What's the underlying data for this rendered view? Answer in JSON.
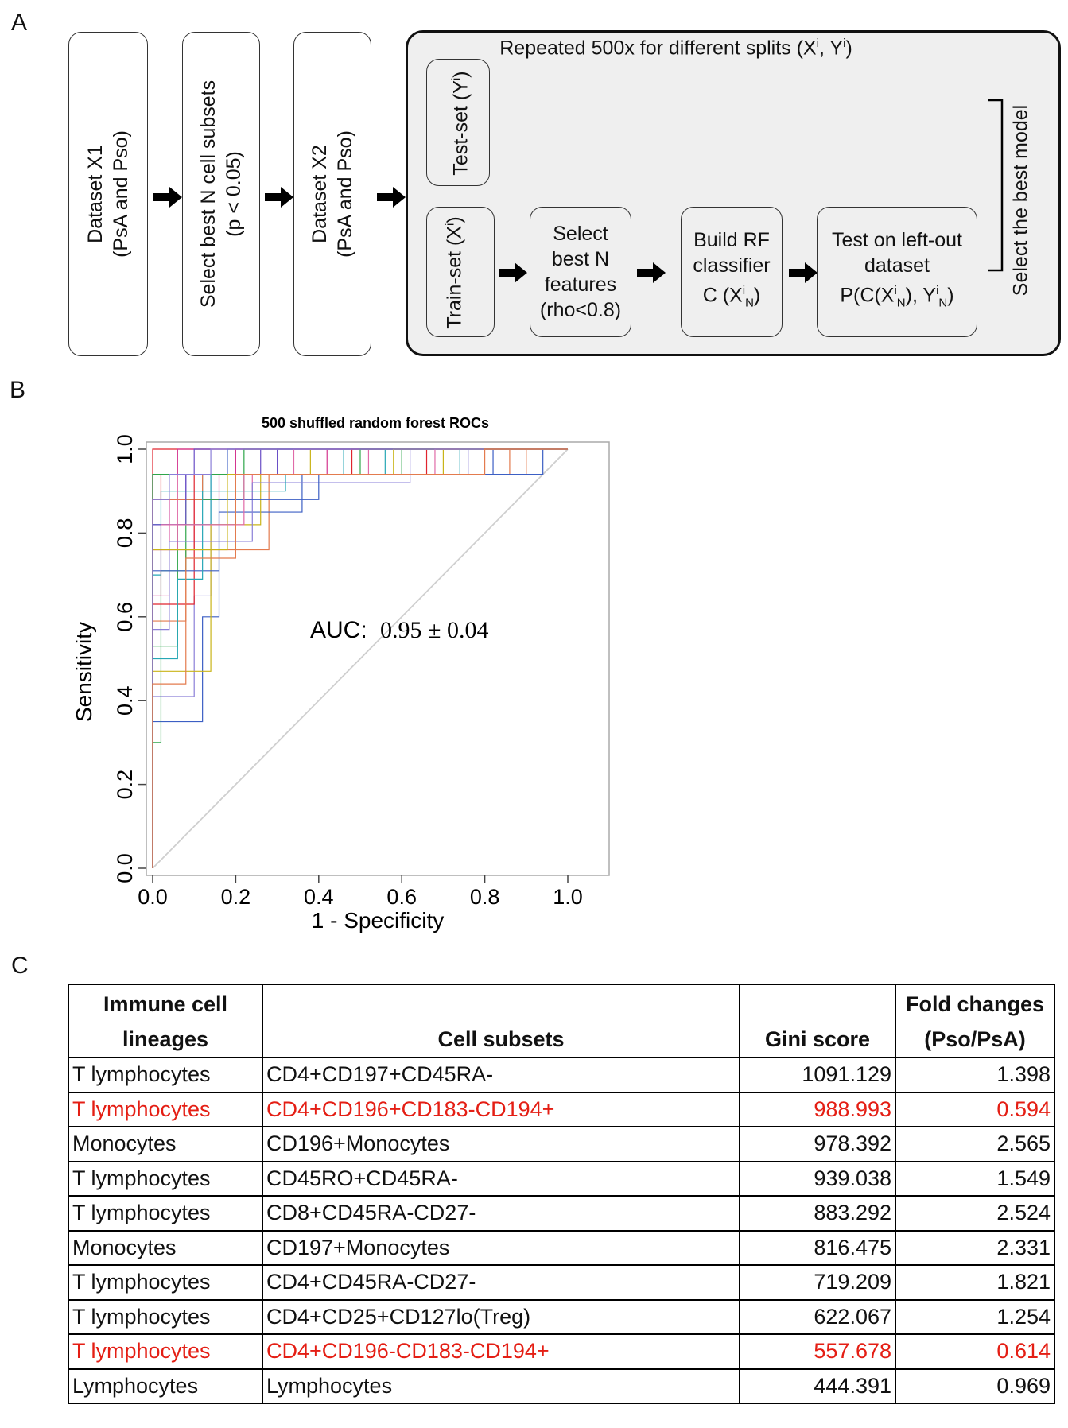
{
  "panel_labels": {
    "a": "A",
    "b": "B",
    "c": "C"
  },
  "panelA": {
    "box1": {
      "line1": "Dataset X1",
      "line2": "(PsA and Pso)"
    },
    "box2": {
      "line1": "Select best N cell subsets",
      "line2": "(p < 0.05)"
    },
    "box3": {
      "line1": "Dataset X2",
      "line2": "(PsA and Pso)"
    },
    "repeat_title_pre": "Repeated 500x for different splits (X",
    "repeat_title_mid": ", Y",
    "repeat_title_post": ")",
    "sup_i": "i",
    "sub_N": "N",
    "test_set_label": "Test-set (Y",
    "train_set_label": "Train-set (X",
    "close_paren": ")",
    "select_features": {
      "l1": "Select",
      "l2": "best N",
      "l3": "features",
      "l4": "(rho<0.8)"
    },
    "build_rf": {
      "l1": "Build  RF",
      "l2": "classifier",
      "l3_pre": "C (X",
      "l3_post": ")"
    },
    "test_leftout": {
      "l1": "Test on left-out",
      "l2": "dataset",
      "l3_pre": "P(C(X",
      "l3_mid": "), Y",
      "l3_post": ")"
    },
    "select_best_model": "Select the best model"
  },
  "chart_data": {
    "type": "line",
    "title": "500 shuffled random forest ROCs",
    "xlabel": "1 - Specificity",
    "ylabel": "Sensitivity",
    "xlim": [
      0.0,
      1.0
    ],
    "ylim": [
      0.0,
      1.0
    ],
    "x_ticks": [
      "0.0",
      "0.2",
      "0.4",
      "0.6",
      "0.8",
      "1.0"
    ],
    "y_ticks": [
      "0.0",
      "0.2",
      "0.4",
      "0.6",
      "0.8",
      "1.0"
    ],
    "annotation": "AUC:",
    "annotation_value": "0.95 ± 0.04",
    "diagonal": [
      [
        0,
        0
      ],
      [
        1,
        1
      ]
    ],
    "series_count": 500,
    "series_colors": [
      "#e0242e",
      "#d4358f",
      "#3c5fc4",
      "#6a4fc6",
      "#26a7b5",
      "#2fa64a",
      "#c9b418",
      "#e06aa8",
      "#8a7fd8",
      "#e37b4e"
    ],
    "series": [
      {
        "name": "roc-1",
        "points": [
          [
            0,
            0
          ],
          [
            0,
            1
          ],
          [
            1,
            1
          ]
        ]
      },
      {
        "name": "roc-2",
        "points": [
          [
            0,
            0
          ],
          [
            0,
            0.94
          ],
          [
            0.06,
            0.94
          ],
          [
            0.06,
            1
          ],
          [
            1,
            1
          ]
        ]
      },
      {
        "name": "roc-3",
        "points": [
          [
            0,
            0
          ],
          [
            0,
            0.82
          ],
          [
            0.04,
            0.82
          ],
          [
            0.04,
            0.94
          ],
          [
            0.18,
            0.94
          ],
          [
            0.18,
            1
          ],
          [
            1,
            1
          ]
        ]
      },
      {
        "name": "roc-4",
        "points": [
          [
            0,
            0
          ],
          [
            0,
            0.88
          ],
          [
            0.08,
            0.88
          ],
          [
            0.08,
            0.94
          ],
          [
            0.3,
            0.94
          ],
          [
            0.3,
            1
          ],
          [
            1,
            1
          ]
        ]
      },
      {
        "name": "roc-5",
        "points": [
          [
            0,
            0
          ],
          [
            0,
            0.7
          ],
          [
            0.02,
            0.7
          ],
          [
            0.02,
            0.9
          ],
          [
            0.12,
            0.9
          ],
          [
            0.12,
            0.94
          ],
          [
            0.46,
            0.94
          ],
          [
            0.46,
            1
          ],
          [
            1,
            1
          ]
        ]
      },
      {
        "name": "roc-6",
        "points": [
          [
            0,
            0
          ],
          [
            0,
            0.53
          ],
          [
            0.06,
            0.53
          ],
          [
            0.06,
            0.82
          ],
          [
            0.2,
            0.82
          ],
          [
            0.2,
            0.94
          ],
          [
            0.6,
            0.94
          ],
          [
            0.6,
            1
          ],
          [
            1,
            1
          ]
        ]
      },
      {
        "name": "roc-7",
        "points": [
          [
            0,
            0
          ],
          [
            0,
            0.94
          ],
          [
            0.38,
            0.94
          ],
          [
            0.38,
            1
          ],
          [
            1,
            1
          ]
        ]
      },
      {
        "name": "roc-8",
        "points": [
          [
            0,
            0
          ],
          [
            0,
            0.76
          ],
          [
            0.1,
            0.76
          ],
          [
            0.1,
            0.88
          ],
          [
            0.24,
            0.88
          ],
          [
            0.24,
            0.94
          ],
          [
            0.52,
            0.94
          ],
          [
            0.52,
            1
          ],
          [
            1,
            1
          ]
        ]
      },
      {
        "name": "roc-9",
        "points": [
          [
            0,
            0
          ],
          [
            0,
            0.41
          ],
          [
            0.1,
            0.41
          ],
          [
            0.1,
            0.65
          ],
          [
            0.14,
            0.65
          ],
          [
            0.14,
            0.94
          ],
          [
            0.76,
            0.94
          ],
          [
            0.76,
            1
          ],
          [
            1,
            1
          ]
        ]
      },
      {
        "name": "roc-10",
        "points": [
          [
            0,
            0
          ],
          [
            0,
            0.59
          ],
          [
            0.08,
            0.59
          ],
          [
            0.08,
            0.76
          ],
          [
            0.28,
            0.76
          ],
          [
            0.28,
            0.94
          ],
          [
            0.9,
            0.94
          ],
          [
            0.9,
            1
          ],
          [
            1,
            1
          ]
        ]
      },
      {
        "name": "roc-11",
        "points": [
          [
            0,
            0
          ],
          [
            0,
            0.88
          ],
          [
            0.02,
            0.88
          ],
          [
            0.02,
            0.94
          ],
          [
            0.66,
            0.94
          ],
          [
            0.66,
            1
          ],
          [
            1,
            1
          ]
        ]
      },
      {
        "name": "roc-12",
        "points": [
          [
            0,
            0
          ],
          [
            0,
            0.65
          ],
          [
            0.04,
            0.65
          ],
          [
            0.04,
            0.88
          ],
          [
            0.16,
            0.88
          ],
          [
            0.16,
            0.94
          ],
          [
            0.42,
            0.94
          ],
          [
            0.42,
            1
          ],
          [
            1,
            1
          ]
        ]
      },
      {
        "name": "roc-13",
        "points": [
          [
            0,
            0
          ],
          [
            0,
            0.35
          ],
          [
            0.12,
            0.35
          ],
          [
            0.12,
            0.6
          ],
          [
            0.16,
            0.6
          ],
          [
            0.16,
            0.85
          ],
          [
            0.36,
            0.85
          ],
          [
            0.36,
            0.94
          ],
          [
            0.82,
            0.94
          ],
          [
            0.82,
            1
          ],
          [
            1,
            1
          ]
        ]
      },
      {
        "name": "roc-14",
        "points": [
          [
            0,
            0
          ],
          [
            0,
            0.94
          ],
          [
            0.1,
            0.94
          ],
          [
            0.1,
            1
          ],
          [
            1,
            1
          ]
        ]
      },
      {
        "name": "roc-15",
        "points": [
          [
            0,
            0
          ],
          [
            0,
            0.82
          ],
          [
            0.14,
            0.82
          ],
          [
            0.14,
            0.94
          ],
          [
            0.56,
            0.94
          ],
          [
            0.56,
            1
          ],
          [
            1,
            1
          ]
        ]
      },
      {
        "name": "roc-16",
        "points": [
          [
            0,
            0
          ],
          [
            0,
            0.3
          ],
          [
            0.02,
            0.3
          ],
          [
            0.02,
            0.71
          ],
          [
            0.08,
            0.71
          ],
          [
            0.08,
            0.88
          ],
          [
            0.22,
            0.88
          ],
          [
            0.22,
            1
          ],
          [
            1,
            1
          ]
        ]
      },
      {
        "name": "roc-17",
        "points": [
          [
            0,
            0
          ],
          [
            0,
            0.47
          ],
          [
            0.14,
            0.47
          ],
          [
            0.14,
            0.82
          ],
          [
            0.26,
            0.82
          ],
          [
            0.26,
            0.94
          ],
          [
            0.7,
            0.94
          ],
          [
            0.7,
            1
          ],
          [
            1,
            1
          ]
        ]
      },
      {
        "name": "roc-18",
        "points": [
          [
            0,
            0
          ],
          [
            0,
            0.76
          ],
          [
            0.06,
            0.76
          ],
          [
            0.06,
            0.94
          ],
          [
            0.34,
            0.94
          ],
          [
            0.34,
            1
          ],
          [
            1,
            1
          ]
        ]
      },
      {
        "name": "roc-19",
        "points": [
          [
            0,
            0
          ],
          [
            0,
            0.57
          ],
          [
            0.04,
            0.57
          ],
          [
            0.04,
            0.78
          ],
          [
            0.24,
            0.78
          ],
          [
            0.24,
            0.92
          ],
          [
            0.62,
            0.92
          ],
          [
            0.62,
            1
          ],
          [
            1,
            1
          ]
        ]
      },
      {
        "name": "roc-20",
        "points": [
          [
            0,
            0
          ],
          [
            0,
            0.88
          ],
          [
            0.12,
            0.88
          ],
          [
            0.12,
            0.94
          ],
          [
            0.86,
            0.94
          ],
          [
            0.86,
            1
          ],
          [
            1,
            1
          ]
        ]
      },
      {
        "name": "roc-21",
        "points": [
          [
            0,
            0
          ],
          [
            0,
            0.63
          ],
          [
            0.1,
            0.63
          ],
          [
            0.1,
            0.94
          ],
          [
            0.48,
            0.94
          ],
          [
            0.48,
            1
          ],
          [
            1,
            1
          ]
        ]
      },
      {
        "name": "roc-22",
        "points": [
          [
            0,
            0
          ],
          [
            0,
            0.94
          ],
          [
            0.2,
            0.94
          ],
          [
            0.2,
            1
          ],
          [
            1,
            1
          ]
        ]
      },
      {
        "name": "roc-23",
        "points": [
          [
            0,
            0
          ],
          [
            0,
            0.71
          ],
          [
            0.16,
            0.71
          ],
          [
            0.16,
            0.88
          ],
          [
            0.4,
            0.88
          ],
          [
            0.4,
            0.94
          ],
          [
            0.94,
            0.94
          ],
          [
            0.94,
            1
          ],
          [
            1,
            1
          ]
        ]
      },
      {
        "name": "roc-24",
        "points": [
          [
            0,
            0
          ],
          [
            0,
            0.82
          ],
          [
            0.08,
            0.82
          ],
          [
            0.08,
            0.94
          ],
          [
            0.26,
            0.94
          ],
          [
            0.26,
            1
          ],
          [
            1,
            1
          ]
        ]
      },
      {
        "name": "roc-25",
        "points": [
          [
            0,
            0
          ],
          [
            0,
            0.5
          ],
          [
            0.06,
            0.5
          ],
          [
            0.06,
            0.69
          ],
          [
            0.12,
            0.69
          ],
          [
            0.12,
            0.9
          ],
          [
            0.32,
            0.9
          ],
          [
            0.32,
            0.94
          ],
          [
            0.74,
            0.94
          ],
          [
            0.74,
            1
          ],
          [
            1,
            1
          ]
        ]
      },
      {
        "name": "roc-26",
        "points": [
          [
            0,
            0
          ],
          [
            0,
            0.94
          ],
          [
            0.5,
            0.94
          ],
          [
            0.5,
            1
          ],
          [
            1,
            1
          ]
        ]
      },
      {
        "name": "roc-27",
        "points": [
          [
            0,
            0
          ],
          [
            0,
            0.76
          ],
          [
            0.18,
            0.76
          ],
          [
            0.18,
            0.94
          ],
          [
            0.58,
            0.94
          ],
          [
            0.58,
            1
          ],
          [
            1,
            1
          ]
        ]
      },
      {
        "name": "roc-28",
        "points": [
          [
            0,
            0
          ],
          [
            0,
            0.65
          ],
          [
            0.02,
            0.65
          ],
          [
            0.02,
            0.82
          ],
          [
            0.22,
            0.82
          ],
          [
            0.22,
            0.94
          ],
          [
            0.68,
            0.94
          ],
          [
            0.68,
            1
          ],
          [
            1,
            1
          ]
        ]
      },
      {
        "name": "roc-29",
        "points": [
          [
            0,
            0
          ],
          [
            0,
            0.88
          ],
          [
            0.04,
            0.88
          ],
          [
            0.04,
            0.94
          ],
          [
            0.14,
            0.94
          ],
          [
            0.14,
            1
          ],
          [
            1,
            1
          ]
        ]
      },
      {
        "name": "roc-30",
        "points": [
          [
            0,
            0
          ],
          [
            0,
            0.44
          ],
          [
            0.08,
            0.44
          ],
          [
            0.08,
            0.74
          ],
          [
            0.2,
            0.74
          ],
          [
            0.2,
            0.94
          ],
          [
            0.8,
            0.94
          ],
          [
            0.8,
            1
          ],
          [
            1,
            1
          ]
        ]
      }
    ]
  },
  "table": {
    "headers": {
      "lineage_l1": "Immune cell",
      "lineage_l2": "lineages",
      "subset": "Cell subsets",
      "gini": "Gini score",
      "fold_l1": "Fold changes",
      "fold_l2": "(Pso/PsA)"
    },
    "rows": [
      {
        "lineage": "T lymphocytes",
        "subset": "CD4+CD197+CD45RA-",
        "gini": "1091.129",
        "fold": "1.398",
        "highlight": false
      },
      {
        "lineage": "T lymphocytes",
        "subset": "CD4+CD196+CD183-CD194+",
        "gini": "988.993",
        "fold": "0.594",
        "highlight": true
      },
      {
        "lineage": "Monocytes",
        "subset": "CD196+Monocytes",
        "gini": "978.392",
        "fold": "2.565",
        "highlight": false
      },
      {
        "lineage": "T lymphocytes",
        "subset": "CD45RO+CD45RA-",
        "gini": "939.038",
        "fold": "1.549",
        "highlight": false
      },
      {
        "lineage": "T lymphocytes",
        "subset": "CD8+CD45RA-CD27-",
        "gini": "883.292",
        "fold": "2.524",
        "highlight": false
      },
      {
        "lineage": "Monocytes",
        "subset": "CD197+Monocytes",
        "gini": "816.475",
        "fold": "2.331",
        "highlight": false
      },
      {
        "lineage": "T lymphocytes",
        "subset": "CD4+CD45RA-CD27-",
        "gini": "719.209",
        "fold": "1.821",
        "highlight": false
      },
      {
        "lineage": "T lymphocytes",
        "subset": "CD4+CD25+CD127lo(Treg)",
        "gini": "622.067",
        "fold": "1.254",
        "highlight": false
      },
      {
        "lineage": "T lymphocytes",
        "subset": "CD4+CD196-CD183-CD194+",
        "gini": "557.678",
        "fold": "0.614",
        "highlight": true
      },
      {
        "lineage": "Lymphocytes",
        "subset": "Lymphocytes",
        "gini": "444.391",
        "fold": "0.969",
        "highlight": false
      }
    ]
  }
}
